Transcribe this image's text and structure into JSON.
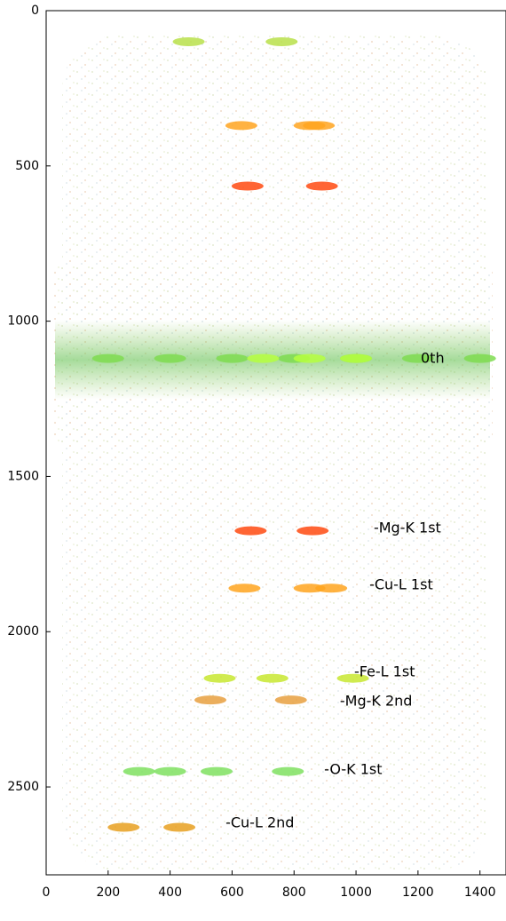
{
  "chart_data": {
    "type": "scatter",
    "xlim": [
      0,
      1484
    ],
    "ylim": [
      0,
      2783
    ],
    "y_inverted": true,
    "xticks": [
      0,
      200,
      400,
      600,
      800,
      1000,
      1200,
      1400
    ],
    "yticks": [
      0,
      500,
      1000,
      1500,
      2000,
      2500
    ],
    "series": [
      {
        "color": "#b8e04a",
        "x": [
          460,
          760
        ],
        "y": [
          100,
          100
        ]
      },
      {
        "color": "#ffa520",
        "x": [
          630,
          850,
          880
        ],
        "y": [
          370,
          370,
          370
        ]
      },
      {
        "color": "#ff4a10",
        "x": [
          650,
          890
        ],
        "y": [
          565,
          565
        ]
      },
      {
        "color": "#7fdc50",
        "x": [
          200,
          400,
          600,
          800,
          1000,
          1200,
          1400
        ],
        "y": [
          1120,
          1120,
          1120,
          1120,
          1120,
          1120,
          1120
        ]
      },
      {
        "color": "#b6ff40",
        "x": [
          700,
          850,
          1000
        ],
        "y": [
          1120,
          1120,
          1120
        ]
      },
      {
        "color": "#ff4a10",
        "x": [
          660,
          860
        ],
        "y": [
          1675,
          1675
        ]
      },
      {
        "color": "#ffa520",
        "x": [
          640,
          850,
          920
        ],
        "y": [
          1860,
          1860,
          1860
        ]
      },
      {
        "color": "#c8e830",
        "x": [
          560,
          730,
          990
        ],
        "y": [
          2150,
          2150,
          2150
        ]
      },
      {
        "color": "#e8a040",
        "x": [
          530,
          790
        ],
        "y": [
          2220,
          2220
        ]
      },
      {
        "color": "#7fe060",
        "x": [
          300,
          400,
          550,
          780
        ],
        "y": [
          2450,
          2450,
          2450,
          2450
        ]
      },
      {
        "color": "#e8a020",
        "x": [
          250,
          430
        ],
        "y": [
          2630,
          2630
        ]
      }
    ],
    "annotations": [
      {
        "text": "0th",
        "x": 1209,
        "y": 1121
      },
      {
        "text": "-Mg-K 1st",
        "x": 1057,
        "y": 1668
      },
      {
        "text": "-Cu-L 1st",
        "x": 1043,
        "y": 1851
      },
      {
        "text": "-Fe-L 1st",
        "x": 994,
        "y": 2131
      },
      {
        "text": "-Mg-K 2nd",
        "x": 948,
        "y": 2225
      },
      {
        "text": "-O-K 1st",
        "x": 897,
        "y": 2446
      },
      {
        "text": "-Cu-L 2nd",
        "x": 579,
        "y": 2617
      }
    ]
  }
}
